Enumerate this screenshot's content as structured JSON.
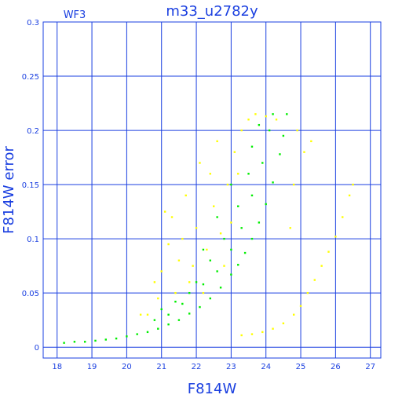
{
  "chart_data": {
    "type": "scatter",
    "title": "m33_u2782y",
    "chip": "WF3",
    "xlabel": "F814W",
    "ylabel": "F814W error",
    "xlim": [
      17.6,
      27.3
    ],
    "ylim": [
      -0.01,
      0.3
    ],
    "xticks": [
      18,
      19,
      20,
      21,
      22,
      23,
      24,
      25,
      26,
      27
    ],
    "yticks": [
      0,
      0.05,
      0.1,
      0.15,
      0.2,
      0.25,
      0.3
    ],
    "ytick_labels": [
      "0",
      "0.05",
      "0.1",
      "0.15",
      "0.2",
      "0.25",
      "0.3"
    ],
    "grid": true,
    "series": [
      {
        "color": "#00ee00",
        "points": [
          [
            18.2,
            0.004
          ],
          [
            18.5,
            0.005
          ],
          [
            18.8,
            0.005
          ],
          [
            19.1,
            0.006
          ],
          [
            19.4,
            0.007
          ],
          [
            19.7,
            0.008
          ],
          [
            20.0,
            0.01
          ],
          [
            20.3,
            0.012
          ],
          [
            20.6,
            0.014
          ],
          [
            20.9,
            0.017
          ],
          [
            21.2,
            0.021
          ],
          [
            21.5,
            0.025
          ],
          [
            21.8,
            0.031
          ],
          [
            22.1,
            0.037
          ],
          [
            22.4,
            0.045
          ],
          [
            22.7,
            0.055
          ],
          [
            23.0,
            0.067
          ],
          [
            23.2,
            0.076
          ],
          [
            23.4,
            0.087
          ],
          [
            23.6,
            0.1
          ],
          [
            23.8,
            0.115
          ],
          [
            24.0,
            0.132
          ],
          [
            24.2,
            0.152
          ],
          [
            24.4,
            0.178
          ],
          [
            24.5,
            0.195
          ],
          [
            24.6,
            0.215
          ],
          [
            21.0,
            0.035
          ],
          [
            21.4,
            0.042
          ],
          [
            21.8,
            0.05
          ],
          [
            22.2,
            0.058
          ],
          [
            22.6,
            0.07
          ],
          [
            23.0,
            0.09
          ],
          [
            23.3,
            0.11
          ],
          [
            23.6,
            0.14
          ],
          [
            23.9,
            0.17
          ],
          [
            24.1,
            0.2
          ],
          [
            23.5,
            0.16
          ],
          [
            23.2,
            0.13
          ],
          [
            22.8,
            0.1
          ],
          [
            22.4,
            0.08
          ],
          [
            22.0,
            0.06
          ],
          [
            21.6,
            0.04
          ],
          [
            23.8,
            0.205
          ],
          [
            24.2,
            0.215
          ],
          [
            23.6,
            0.185
          ],
          [
            23.0,
            0.15
          ],
          [
            22.6,
            0.12
          ],
          [
            22.2,
            0.09
          ],
          [
            21.2,
            0.03
          ],
          [
            20.8,
            0.025
          ]
        ]
      },
      {
        "color": "#ffff00",
        "points": [
          [
            20.6,
            0.03
          ],
          [
            20.9,
            0.045
          ],
          [
            21.0,
            0.07
          ],
          [
            21.2,
            0.095
          ],
          [
            21.3,
            0.12
          ],
          [
            21.5,
            0.08
          ],
          [
            21.7,
            0.14
          ],
          [
            21.8,
            0.06
          ],
          [
            22.0,
            0.11
          ],
          [
            22.1,
            0.17
          ],
          [
            22.3,
            0.09
          ],
          [
            22.5,
            0.13
          ],
          [
            22.6,
            0.19
          ],
          [
            22.8,
            0.075
          ],
          [
            22.9,
            0.15
          ],
          [
            23.0,
            0.115
          ],
          [
            23.1,
            0.18
          ],
          [
            23.3,
            0.2
          ],
          [
            23.5,
            0.21
          ],
          [
            23.7,
            0.215
          ],
          [
            24.0,
            0.213
          ],
          [
            24.3,
            0.21
          ],
          [
            21.6,
            0.1
          ],
          [
            22.2,
            0.05
          ],
          [
            21.9,
            0.075
          ],
          [
            22.7,
            0.105
          ],
          [
            23.2,
            0.16
          ],
          [
            20.8,
            0.06
          ],
          [
            20.4,
            0.03
          ],
          [
            21.1,
            0.125
          ],
          [
            22.4,
            0.16
          ],
          [
            21.4,
            0.05
          ],
          [
            23.3,
            0.011
          ],
          [
            23.6,
            0.012
          ],
          [
            23.9,
            0.014
          ],
          [
            24.2,
            0.017
          ],
          [
            24.5,
            0.022
          ],
          [
            24.8,
            0.03
          ],
          [
            25.0,
            0.038
          ],
          [
            25.2,
            0.05
          ],
          [
            25.4,
            0.062
          ],
          [
            25.6,
            0.075
          ],
          [
            25.8,
            0.088
          ],
          [
            26.0,
            0.102
          ],
          [
            26.2,
            0.12
          ],
          [
            26.4,
            0.14
          ],
          [
            26.5,
            0.15
          ],
          [
            24.7,
            0.11
          ],
          [
            24.8,
            0.15
          ],
          [
            24.9,
            0.2
          ],
          [
            25.1,
            0.18
          ],
          [
            25.3,
            0.19
          ]
        ]
      }
    ]
  }
}
